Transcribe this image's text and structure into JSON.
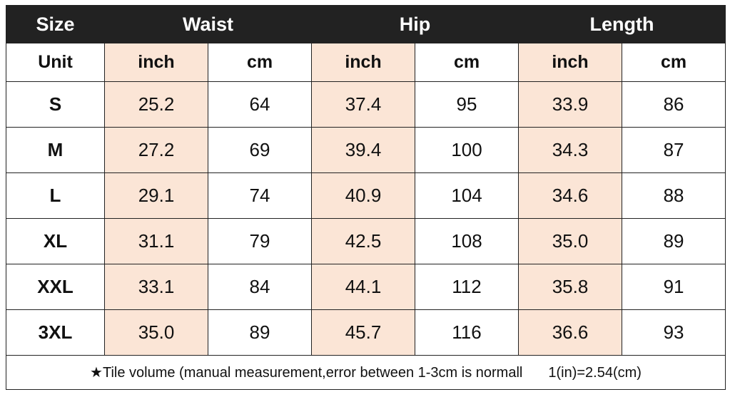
{
  "header": {
    "size": "Size",
    "waist": "Waist",
    "hip": "Hip",
    "length": "Length"
  },
  "units": {
    "label": "Unit",
    "inch": "inch",
    "cm": "cm"
  },
  "rows": [
    {
      "size": "S",
      "waist_in": "25.2",
      "waist_cm": "64",
      "hip_in": "37.4",
      "hip_cm": "95",
      "len_in": "33.9",
      "len_cm": "86"
    },
    {
      "size": "M",
      "waist_in": "27.2",
      "waist_cm": "69",
      "hip_in": "39.4",
      "hip_cm": "100",
      "len_in": "34.3",
      "len_cm": "87"
    },
    {
      "size": "L",
      "waist_in": "29.1",
      "waist_cm": "74",
      "hip_in": "40.9",
      "hip_cm": "104",
      "len_in": "34.6",
      "len_cm": "88"
    },
    {
      "size": "XL",
      "waist_in": "31.1",
      "waist_cm": "79",
      "hip_in": "42.5",
      "hip_cm": "108",
      "len_in": "35.0",
      "len_cm": "89"
    },
    {
      "size": "XXL",
      "waist_in": "33.1",
      "waist_cm": "84",
      "hip_in": "44.1",
      "hip_cm": "112",
      "len_in": "35.8",
      "len_cm": "91"
    },
    {
      "size": "3XL",
      "waist_in": "35.0",
      "waist_cm": "89",
      "hip_in": "45.7",
      "hip_cm": "116",
      "len_in": "36.6",
      "len_cm": "93"
    }
  ],
  "note": {
    "text": "★Tile volume (manual measurement,error between 1-3cm is normall",
    "ratio": "1(in)=2.54(cm)"
  },
  "colors": {
    "header_bg": "#222222",
    "header_text": "#ffffff",
    "inch_bg": "#fbe5d6"
  }
}
